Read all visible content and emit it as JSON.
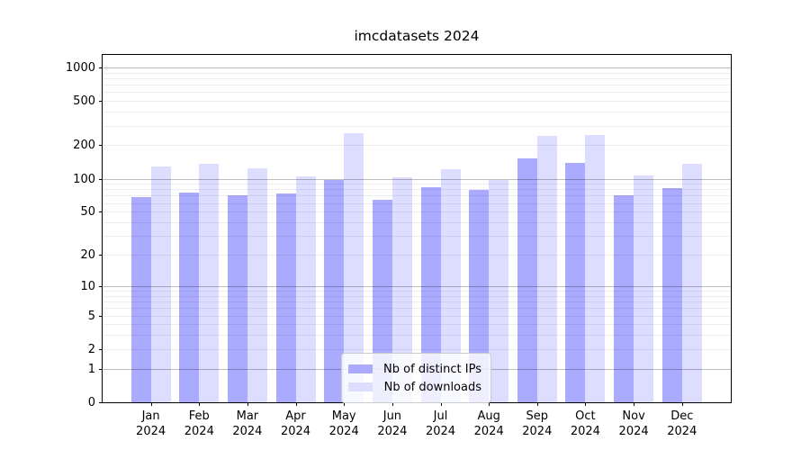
{
  "chart_data": {
    "type": "bar",
    "title": "imcdatasets 2024",
    "x_categories": [
      "Jan",
      "Feb",
      "Mar",
      "Apr",
      "May",
      "Jun",
      "Jul",
      "Aug",
      "Sep",
      "Oct",
      "Nov",
      "Dec"
    ],
    "x_year": "2024",
    "series": [
      {
        "name": "Nb of distinct IPs",
        "color": "#aaaaff",
        "values": [
          68,
          75,
          71,
          73,
          98,
          64,
          83,
          79,
          152,
          140,
          71,
          82
        ]
      },
      {
        "name": "Nb of downloads",
        "color": "#ddddff",
        "values": [
          130,
          136,
          124,
          104,
          256,
          102,
          122,
          98,
          243,
          246,
          107,
          136
        ]
      }
    ],
    "yscale": "log10(value+1)",
    "ytick_values": [
      1000,
      500,
      200,
      100,
      50,
      20,
      10,
      5,
      2,
      1,
      0
    ],
    "ylim": [
      0,
      1300
    ],
    "grid": "horizontal major and minor gridlines drawn over bars",
    "legend_position": "lower center inside plot"
  }
}
